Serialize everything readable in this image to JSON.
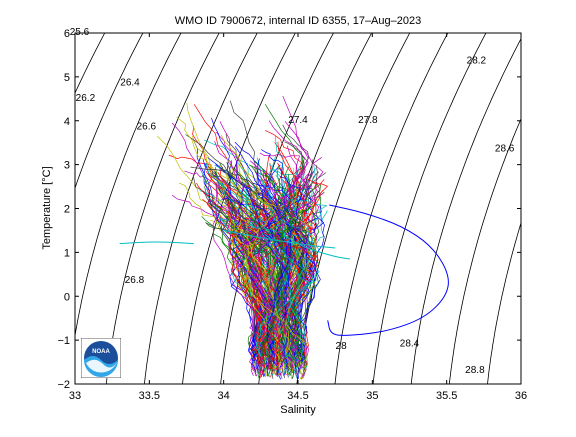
{
  "chart_data": {
    "type": "line",
    "title": "WMO ID 7900672, internal ID 6355, 17–Aug–2023",
    "xlabel": "Salinity",
    "ylabel": "Temperature [°C]",
    "xlim": [
      33,
      36
    ],
    "ylim": [
      -2,
      6
    ],
    "xticks": [
      "33",
      "33.5",
      "34",
      "34.5",
      "35",
      "35.5",
      "36"
    ],
    "yticks": [
      "−2",
      "−1",
      "0",
      "1",
      "2",
      "3",
      "4",
      "5",
      "6"
    ],
    "grid": false,
    "density_contours": [
      {
        "sigma": 25.6,
        "label": "25.6",
        "label_at": [
          33.03,
          5.95
        ]
      },
      {
        "sigma": 26.2,
        "label": "26.2",
        "label_at": [
          33.07,
          4.45
        ]
      },
      {
        "sigma": 26.4,
        "label": "26.4",
        "label_at": [
          33.37,
          4.8
        ]
      },
      {
        "sigma": 26.6,
        "label": "26.6",
        "label_at": [
          33.48,
          3.8
        ]
      },
      {
        "sigma": 26.8,
        "label": "26.8",
        "label_at": [
          33.4,
          0.3
        ]
      },
      {
        "sigma": 27.0,
        "label": ""
      },
      {
        "sigma": 27.2,
        "label": ""
      },
      {
        "sigma": 27.4,
        "label": "27.4",
        "label_at": [
          34.5,
          3.95
        ]
      },
      {
        "sigma": 27.6,
        "label": ""
      },
      {
        "sigma": 27.8,
        "label": "27.8",
        "label_at": [
          34.97,
          3.95
        ]
      },
      {
        "sigma": 28.0,
        "label": "28",
        "label_at": [
          34.79,
          -1.2
        ]
      },
      {
        "sigma": 28.2,
        "label": "28.2",
        "label_at": [
          35.7,
          5.3
        ]
      },
      {
        "sigma": 28.4,
        "label": "28.4",
        "label_at": [
          35.25,
          -1.15
        ]
      },
      {
        "sigma": 28.6,
        "label": "28.6",
        "label_at": [
          35.89,
          3.3
        ]
      },
      {
        "sigma": 28.8,
        "label": "28.8",
        "label_at": [
          35.69,
          -1.75
        ]
      }
    ],
    "series": [
      {
        "color": "#0000ff",
        "values": [
          [
            34.71,
            2.08
          ],
          [
            34.95,
            1.9
          ],
          [
            35.2,
            1.6
          ],
          [
            35.4,
            1.15
          ],
          [
            35.52,
            0.5
          ],
          [
            35.5,
            0.0
          ],
          [
            35.35,
            -0.5
          ],
          [
            35.1,
            -0.8
          ],
          [
            34.85,
            -0.9
          ],
          [
            34.72,
            -0.88
          ],
          [
            34.7,
            -0.55
          ]
        ]
      },
      {
        "color": "#00bfbf",
        "values": [
          [
            34.4,
            1.4
          ],
          [
            34.55,
            1.1
          ],
          [
            34.75,
            0.9
          ],
          [
            34.85,
            0.85
          ]
        ]
      },
      {
        "color": "#00bfbf",
        "values": [
          [
            33.3,
            1.2
          ],
          [
            33.55,
            1.25
          ],
          [
            33.8,
            1.2
          ]
        ]
      },
      {
        "color": "#00bfbf",
        "values": [
          [
            34.0,
            1.5
          ],
          [
            34.3,
            1.3
          ],
          [
            34.6,
            1.15
          ],
          [
            34.75,
            1.1
          ]
        ]
      }
    ],
    "profile_cloud_colors": [
      "#0000ff",
      "#008000",
      "#ff0000",
      "#00bfbf",
      "#bf00bf",
      "#bfbf00",
      "#404040"
    ]
  },
  "logo": {
    "text": "NOAA"
  }
}
